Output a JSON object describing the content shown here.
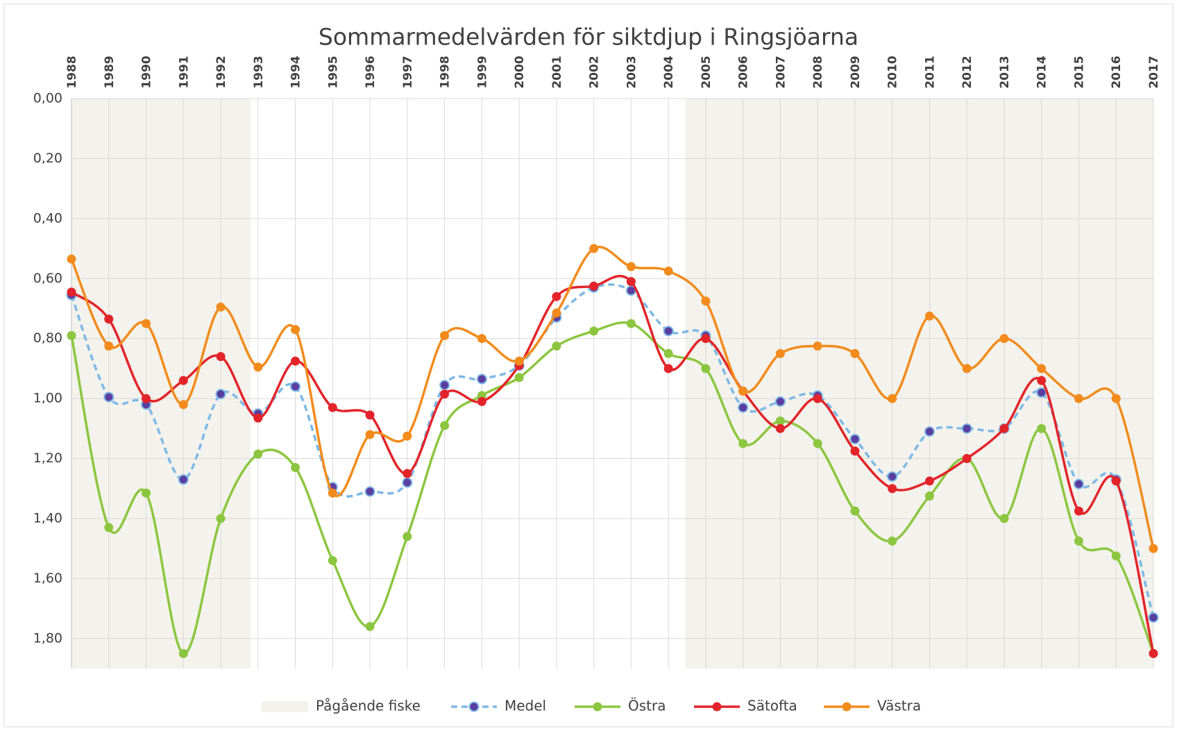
{
  "chart_data": {
    "type": "line",
    "title": "Sommarmedelvärden för siktdjup i Ringsjöarna",
    "x": [
      1988,
      1989,
      1990,
      1991,
      1992,
      1993,
      1994,
      1995,
      1996,
      1997,
      1998,
      1999,
      2000,
      2001,
      2002,
      2003,
      2004,
      2005,
      2006,
      2007,
      2008,
      2009,
      2010,
      2011,
      2012,
      2013,
      2014,
      2015,
      2016,
      2017
    ],
    "xlim": [
      1988,
      2017
    ],
    "ylim": [
      0,
      1.9
    ],
    "y_inverted": true,
    "yticks": [
      {
        "value": 0,
        "label": "0,00"
      },
      {
        "value": 0.2,
        "label": "0,20"
      },
      {
        "value": 0.4,
        "label": "0,40"
      },
      {
        "value": 0.6,
        "label": "0,60"
      },
      {
        "value": 0.8,
        "label": "0,80"
      },
      {
        "value": 1,
        "label": "1,00"
      },
      {
        "value": 1.2,
        "label": "1,20"
      },
      {
        "value": 1.4,
        "label": "1,40"
      },
      {
        "value": 1.6,
        "label": "1,60"
      },
      {
        "value": 1.8,
        "label": "1,80"
      }
    ],
    "grid": true,
    "smooth": true,
    "legend": "bottom",
    "band": {
      "name": "Pågående fiske",
      "color": "#f3f2ec",
      "ranges": [
        [
          1988,
          1992.8
        ],
        [
          2004.45,
          2017
        ]
      ]
    },
    "series": [
      {
        "name": "Medel",
        "color": "#7db8e6",
        "marker_color": "#5a3fa0",
        "dashed": true,
        "values": [
          0.655,
          0.995,
          1.02,
          1.27,
          0.985,
          1.05,
          0.96,
          1.295,
          1.31,
          1.28,
          0.955,
          0.935,
          0.89,
          0.73,
          0.63,
          0.64,
          0.775,
          0.79,
          1.03,
          1.01,
          0.99,
          1.135,
          1.26,
          1.11,
          1.1,
          1.1,
          0.98,
          1.285,
          1.27,
          1.73
        ]
      },
      {
        "name": "Östra",
        "color": "#8cc63f",
        "values": [
          0.79,
          1.43,
          1.315,
          1.85,
          1.4,
          1.185,
          1.23,
          1.54,
          1.76,
          1.46,
          1.09,
          0.99,
          0.93,
          0.825,
          0.775,
          0.75,
          0.85,
          0.9,
          1.15,
          1.075,
          1.15,
          1.375,
          1.475,
          1.325,
          1.2,
          1.4,
          1.1,
          1.475,
          1.525,
          1.85
        ]
      },
      {
        "name": "Sätofta",
        "color": "#e2242a",
        "values": [
          0.645,
          0.735,
          1.0,
          0.94,
          0.86,
          1.065,
          0.875,
          1.03,
          1.055,
          1.25,
          0.985,
          1.01,
          0.89,
          0.66,
          0.625,
          0.61,
          0.9,
          0.8,
          0.975,
          1.1,
          1.0,
          1.175,
          1.3,
          1.275,
          1.2,
          1.1,
          0.94,
          1.375,
          1.275,
          1.85
        ]
      },
      {
        "name": "Västra",
        "color": "#f28b1c",
        "values": [
          0.535,
          0.825,
          0.75,
          1.02,
          0.695,
          0.895,
          0.77,
          1.315,
          1.12,
          1.125,
          0.79,
          0.8,
          0.875,
          0.715,
          0.5,
          0.56,
          0.575,
          0.675,
          0.975,
          0.85,
          0.825,
          0.85,
          1.0,
          0.725,
          0.9,
          0.8,
          0.9,
          1.0,
          1.0,
          1.5
        ]
      }
    ]
  }
}
